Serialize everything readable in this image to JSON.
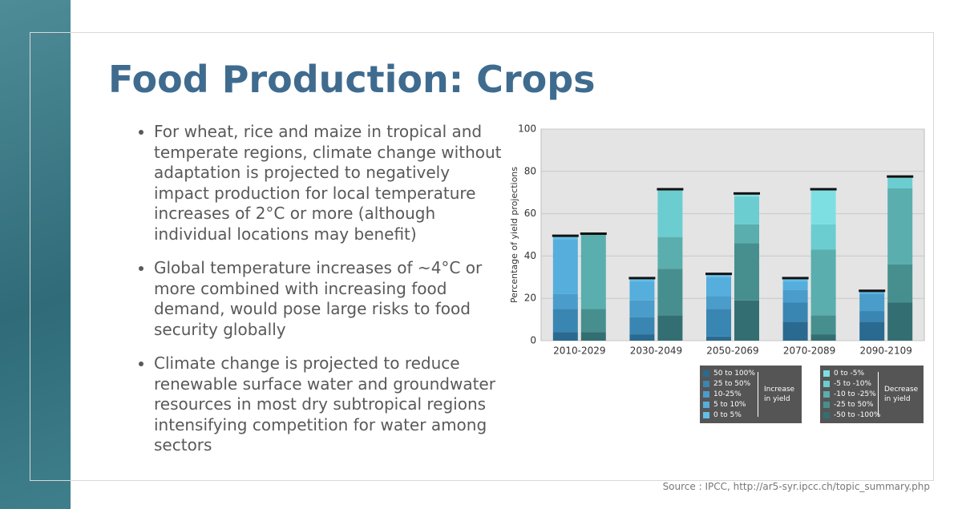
{
  "title": "Food Production: Crops",
  "bullets": [
    "For wheat, rice and maize in tropical and temperate regions, climate change without adaptation is projected to negatively impact production for local temperature increases of 2°C or more (although individual locations may benefit)",
    "Global temperature increases of ~4°C or more combined with increasing food demand, would pose large risks to food security globally",
    "Climate change is projected to reduce renewable surface water and groundwater resources in most dry subtropical regions intensifying competition for water among sectors"
  ],
  "source": "Source : IPCC, http://ar5-syr.ipcc.ch/topic_summary.php",
  "chart_data": {
    "type": "stacked_bar",
    "y_label": "Percentage of yield projections",
    "categories": [
      "2010-2029",
      "2030-2049",
      "2050-2069",
      "2070-2089",
      "2090-2109"
    ],
    "ylim": [
      0,
      100
    ],
    "yticks": [
      0,
      20,
      40,
      60,
      80,
      100
    ],
    "grid": true,
    "groups": [
      {
        "label": "Increase in yield",
        "series": [
          {
            "name": "50 to 100%",
            "color": "#2a6a90",
            "values": [
              4,
              3,
              2,
              9,
              9
            ]
          },
          {
            "name": "25 to 50%",
            "color": "#3a86b2",
            "values": [
              11,
              8,
              13,
              9,
              5
            ]
          },
          {
            "name": "10-25%",
            "color": "#4a9cca",
            "values": [
              7,
              8,
              6,
              6,
              8
            ]
          },
          {
            "name": "5 to 10%",
            "color": "#55aedc",
            "values": [
              26,
              9,
              9,
              4,
              1
            ]
          },
          {
            "name": "0 to 5%",
            "color": "#62bfea",
            "values": [
              1,
              1,
              1,
              1,
              0
            ]
          }
        ]
      },
      {
        "label": "Decrease in yield",
        "series": [
          {
            "name": "0 to -5%",
            "color": "#7edfe3",
            "values": [
              0,
              0,
              1,
              16,
              0
            ]
          },
          {
            "name": "-5 to -10%",
            "color": "#6ccdd0",
            "values": [
              0,
              22,
              13,
              12,
              5
            ]
          },
          {
            "name": "-10 to -25%",
            "color": "#5aaeae",
            "values": [
              35,
              15,
              9,
              31,
              36
            ]
          },
          {
            "name": "-25 to 50%",
            "color": "#478f8f",
            "values": [
              11,
              22,
              27,
              9,
              18
            ]
          },
          {
            "name": "-50 to -100%",
            "color": "#336f72",
            "values": [
              4,
              12,
              19,
              3,
              18
            ]
          }
        ]
      }
    ]
  }
}
